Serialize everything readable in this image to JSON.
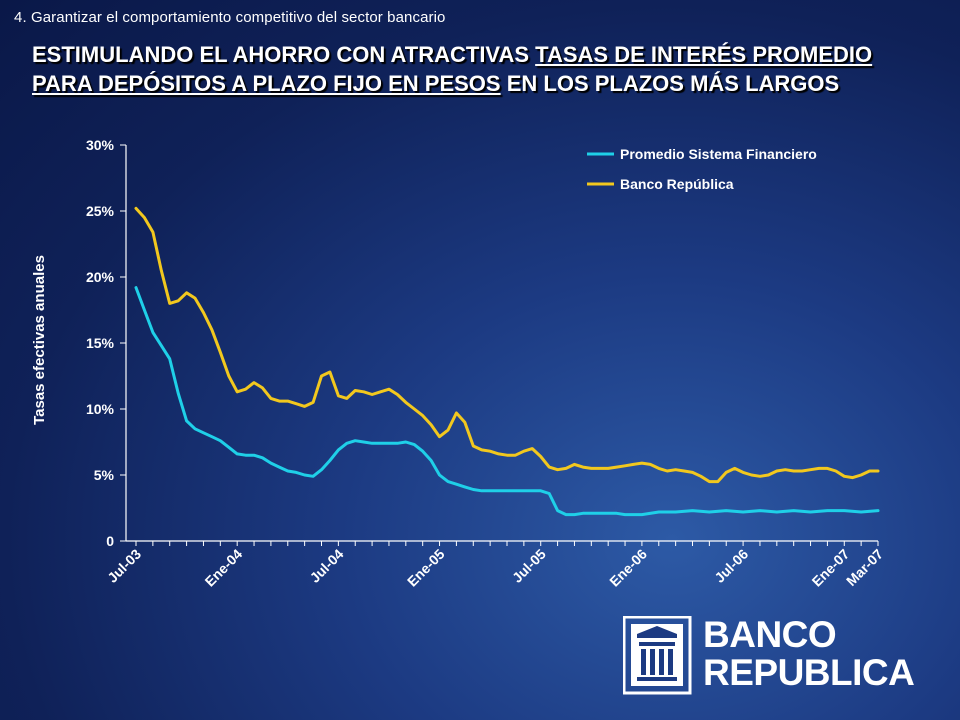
{
  "slide": {
    "subtitle": "4.  Garantizar el comportamiento competitivo del sector bancario",
    "title_part1": "ESTIMULANDO EL AHORRO CON ATRACTIVAS ",
    "title_part2": "TASAS DE  INTERÉS PROMEDIO  PARA DEPÓSITOS A PLAZO FIJO EN PESOS",
    "title_part3": " EN LOS PLAZOS MÁS LARGOS"
  },
  "logo": {
    "line1": "BANCO",
    "line2": "REPUBLICA",
    "icon": "bank-building-icon"
  },
  "chart_data": {
    "type": "line",
    "ylabel": "Tasas efectivas anuales",
    "ylim": [
      0,
      30
    ],
    "yticks": [
      0,
      5,
      10,
      15,
      20,
      25,
      30
    ],
    "ytick_labels": [
      "0",
      "5%",
      "10%",
      "15%",
      "20%",
      "25%",
      "30%"
    ],
    "grid": false,
    "legend_position": "top-right",
    "x_range": [
      0,
      44
    ],
    "xticks": [
      {
        "label": "Jul-03",
        "x": 0
      },
      {
        "label": "Ene-04",
        "x": 6
      },
      {
        "label": "Jul-04",
        "x": 12
      },
      {
        "label": "Ene-05",
        "x": 18
      },
      {
        "label": "Jul-05",
        "x": 24
      },
      {
        "label": "Ene-06",
        "x": 30
      },
      {
        "label": "Jul-06",
        "x": 36
      },
      {
        "label": "Ene-07",
        "x": 42
      },
      {
        "label": "Mar-07",
        "x": 44
      }
    ],
    "series": [
      {
        "name": "Promedio Sistema Financiero",
        "color": "#1fd0e8",
        "x": [
          0,
          0.5,
          1,
          1.5,
          2,
          2.5,
          3,
          3.5,
          4,
          4.5,
          5,
          5.5,
          6,
          6.5,
          7,
          7.5,
          8,
          8.5,
          9,
          9.5,
          10,
          10.5,
          11,
          11.5,
          12,
          12.5,
          13,
          13.5,
          14,
          14.5,
          15,
          15.5,
          16,
          16.5,
          17,
          17.5,
          18,
          18.5,
          19,
          19.5,
          20,
          20.5,
          21,
          21.5,
          22,
          22.5,
          23,
          23.5,
          24,
          24.5,
          25,
          25.5,
          26,
          26.5,
          27,
          27.5,
          28,
          28.5,
          29,
          29.5,
          30,
          31,
          32,
          33,
          34,
          35,
          36,
          37,
          38,
          39,
          40,
          41,
          42,
          43,
          44
        ],
        "y": [
          19.2,
          17.5,
          15.8,
          14.8,
          13.8,
          11.2,
          9.1,
          8.5,
          8.2,
          7.9,
          7.6,
          7.1,
          6.6,
          6.5,
          6.5,
          6.3,
          5.9,
          5.6,
          5.3,
          5.2,
          5.0,
          4.9,
          5.4,
          6.1,
          6.9,
          7.4,
          7.6,
          7.5,
          7.4,
          7.4,
          7.4,
          7.4,
          7.5,
          7.3,
          6.8,
          6.1,
          5.0,
          4.5,
          4.3,
          4.1,
          3.9,
          3.8,
          3.8,
          3.8,
          3.8,
          3.8,
          3.8,
          3.8,
          3.8,
          3.6,
          2.3,
          2.0,
          2.0,
          2.1,
          2.1,
          2.1,
          2.1,
          2.1,
          2.0,
          2.0,
          2.0,
          2.2,
          2.2,
          2.3,
          2.2,
          2.3,
          2.2,
          2.3,
          2.2,
          2.3,
          2.2,
          2.3,
          2.3,
          2.2,
          2.3
        ]
      },
      {
        "name": "Banco República",
        "color": "#f2c81e",
        "x": [
          0,
          0.5,
          1,
          1.5,
          2,
          2.5,
          3,
          3.5,
          4,
          4.5,
          5,
          5.5,
          6,
          6.5,
          7,
          7.5,
          8,
          8.5,
          9,
          9.5,
          10,
          10.5,
          11,
          11.5,
          12,
          12.5,
          13,
          13.5,
          14,
          14.5,
          15,
          15.5,
          16,
          16.5,
          17,
          17.5,
          18,
          18.5,
          19,
          19.5,
          20,
          20.5,
          21,
          21.5,
          22,
          22.5,
          23,
          23.5,
          24,
          24.5,
          25,
          25.5,
          26,
          26.5,
          27,
          27.5,
          28,
          28.5,
          29,
          29.5,
          30,
          30.5,
          31,
          31.5,
          32,
          32.5,
          33,
          33.5,
          34,
          34.5,
          35,
          35.5,
          36,
          36.5,
          37,
          37.5,
          38,
          38.5,
          39,
          39.5,
          40,
          40.5,
          41,
          41.5,
          42,
          42.5,
          43,
          43.5,
          44
        ],
        "y": [
          25.2,
          24.5,
          23.4,
          20.5,
          18.0,
          18.2,
          18.8,
          18.4,
          17.3,
          16.0,
          14.3,
          12.5,
          11.3,
          11.5,
          12.0,
          11.6,
          10.8,
          10.6,
          10.6,
          10.4,
          10.2,
          10.5,
          12.5,
          12.8,
          11.0,
          10.8,
          11.4,
          11.3,
          11.1,
          11.3,
          11.5,
          11.1,
          10.5,
          10.0,
          9.5,
          8.8,
          7.9,
          8.4,
          9.7,
          9.0,
          7.2,
          6.9,
          6.8,
          6.6,
          6.5,
          6.5,
          6.8,
          7.0,
          6.4,
          5.6,
          5.4,
          5.5,
          5.8,
          5.6,
          5.5,
          5.5,
          5.5,
          5.6,
          5.7,
          5.8,
          5.9,
          5.8,
          5.5,
          5.3,
          5.4,
          5.3,
          5.2,
          4.9,
          4.5,
          4.5,
          5.2,
          5.5,
          5.2,
          5.0,
          4.9,
          5.0,
          5.3,
          5.4,
          5.3,
          5.3,
          5.4,
          5.5,
          5.5,
          5.3,
          4.9,
          4.8,
          5.0,
          5.3,
          5.3
        ]
      }
    ]
  }
}
